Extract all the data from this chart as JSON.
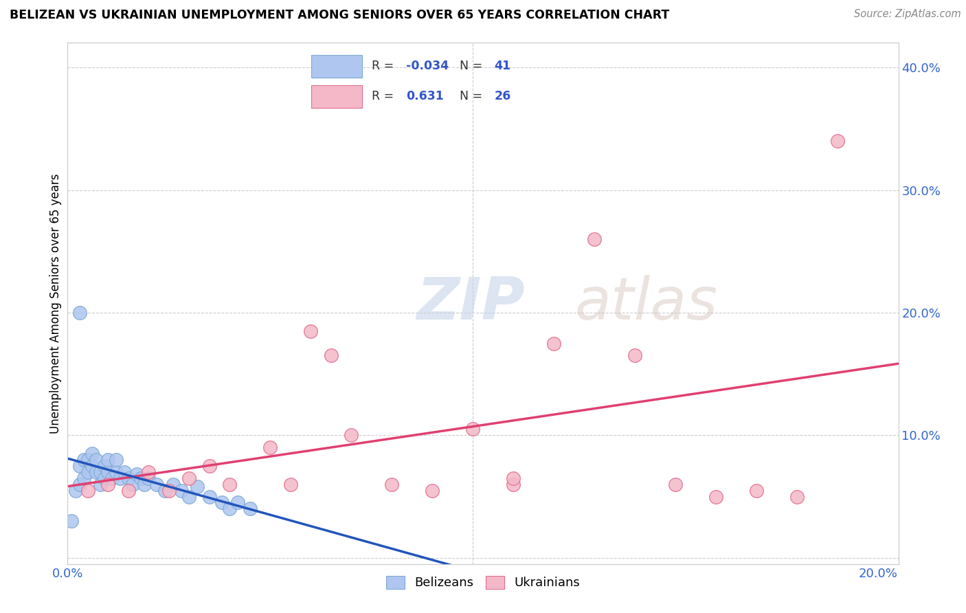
{
  "title": "BELIZEAN VS UKRAINIAN UNEMPLOYMENT AMONG SENIORS OVER 65 YEARS CORRELATION CHART",
  "source": "Source: ZipAtlas.com",
  "xlabel_ticks": [
    "0.0%",
    "",
    "",
    "",
    "20.0%"
  ],
  "xlabel_vals": [
    0.0,
    0.05,
    0.1,
    0.15,
    0.2
  ],
  "ylabel_right_ticks": [
    "",
    "10.0%",
    "20.0%",
    "30.0%",
    "40.0%"
  ],
  "ylabel_right_vals": [
    0.0,
    0.1,
    0.2,
    0.3,
    0.4
  ],
  "ylabel_label": "Unemployment Among Seniors over 65 years",
  "legend_label_1": "Belizeans",
  "legend_label_2": "Ukrainians",
  "R_belizean": -0.034,
  "N_belizean": 41,
  "R_ukrainian": 0.631,
  "N_ukrainian": 26,
  "belizean_color": "#aec6f0",
  "belizean_edge": "#7faad4",
  "ukrainian_color": "#f4b8c8",
  "ukrainian_edge": "#e07090",
  "belizean_trend_color": "#2255bb",
  "ukrainian_trend_color": "#e04070",
  "watermark_zip": "ZIP",
  "watermark_atlas": "atlas",
  "belizean_x": [
    0.001,
    0.002,
    0.003,
    0.003,
    0.004,
    0.004,
    0.005,
    0.005,
    0.006,
    0.006,
    0.007,
    0.007,
    0.008,
    0.008,
    0.009,
    0.009,
    0.01,
    0.01,
    0.011,
    0.012,
    0.012,
    0.013,
    0.014,
    0.015,
    0.016,
    0.017,
    0.018,
    0.019,
    0.02,
    0.022,
    0.024,
    0.026,
    0.028,
    0.03,
    0.032,
    0.035,
    0.038,
    0.04,
    0.042,
    0.045,
    0.003
  ],
  "belizean_y": [
    0.03,
    0.055,
    0.06,
    0.075,
    0.065,
    0.08,
    0.07,
    0.08,
    0.075,
    0.085,
    0.07,
    0.08,
    0.06,
    0.07,
    0.065,
    0.075,
    0.07,
    0.08,
    0.065,
    0.07,
    0.08,
    0.065,
    0.07,
    0.065,
    0.06,
    0.068,
    0.065,
    0.06,
    0.065,
    0.06,
    0.055,
    0.06,
    0.055,
    0.05,
    0.058,
    0.05,
    0.045,
    0.04,
    0.045,
    0.04,
    0.2
  ],
  "ukrainian_x": [
    0.005,
    0.01,
    0.015,
    0.02,
    0.025,
    0.03,
    0.035,
    0.04,
    0.05,
    0.055,
    0.06,
    0.065,
    0.07,
    0.08,
    0.09,
    0.1,
    0.11,
    0.12,
    0.13,
    0.14,
    0.15,
    0.16,
    0.17,
    0.18,
    0.19,
    0.11
  ],
  "ukrainian_y": [
    0.055,
    0.06,
    0.055,
    0.07,
    0.055,
    0.065,
    0.075,
    0.06,
    0.09,
    0.06,
    0.185,
    0.165,
    0.1,
    0.06,
    0.055,
    0.105,
    0.06,
    0.175,
    0.26,
    0.165,
    0.06,
    0.05,
    0.055,
    0.05,
    0.34,
    0.065
  ],
  "xlim": [
    0.0,
    0.205
  ],
  "ylim": [
    -0.005,
    0.42
  ],
  "background_color": "#ffffff",
  "grid_color": "#cccccc"
}
